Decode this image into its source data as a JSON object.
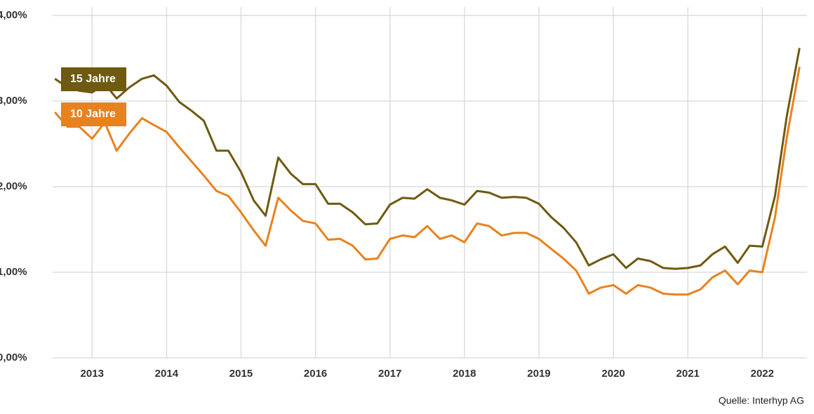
{
  "chart_data": {
    "type": "line",
    "x": [
      2012.5,
      2012.67,
      2012.83,
      2013,
      2013.17,
      2013.33,
      2013.5,
      2013.67,
      2013.83,
      2014,
      2014.17,
      2014.33,
      2014.5,
      2014.67,
      2014.83,
      2015,
      2015.17,
      2015.33,
      2015.5,
      2015.67,
      2015.83,
      2016,
      2016.17,
      2016.33,
      2016.5,
      2016.67,
      2016.83,
      2017,
      2017.17,
      2017.33,
      2017.5,
      2017.67,
      2017.83,
      2018,
      2018.17,
      2018.33,
      2018.5,
      2018.67,
      2018.83,
      2019,
      2019.17,
      2019.33,
      2019.5,
      2019.67,
      2019.83,
      2020,
      2020.17,
      2020.33,
      2020.5,
      2020.67,
      2020.83,
      2021,
      2021.17,
      2021.33,
      2021.5,
      2021.67,
      2021.83,
      2022,
      2022.17,
      2022.33,
      2022.5
    ],
    "series": [
      {
        "name": "15 Jahre",
        "color": "#6e5a10",
        "values": [
          3.26,
          3.16,
          3.12,
          3.1,
          3.2,
          3.03,
          3.16,
          3.26,
          3.3,
          3.18,
          2.99,
          2.89,
          2.77,
          2.42,
          2.42,
          2.17,
          1.84,
          1.66,
          2.34,
          2.15,
          2.03,
          2.03,
          1.8,
          1.8,
          1.7,
          1.56,
          1.57,
          1.79,
          1.87,
          1.86,
          1.97,
          1.87,
          1.84,
          1.79,
          1.95,
          1.93,
          1.87,
          1.88,
          1.87,
          1.8,
          1.64,
          1.52,
          1.35,
          1.08,
          1.15,
          1.21,
          1.05,
          1.16,
          1.13,
          1.05,
          1.04,
          1.05,
          1.08,
          1.21,
          1.3,
          1.11,
          1.31,
          1.3,
          1.89,
          2.83,
          3.62
        ]
      },
      {
        "name": "10 Jahre",
        "color": "#e8821e",
        "values": [
          2.87,
          2.7,
          2.7,
          2.56,
          2.75,
          2.42,
          2.62,
          2.8,
          2.72,
          2.64,
          2.46,
          2.3,
          2.13,
          1.95,
          1.89,
          1.7,
          1.49,
          1.31,
          1.87,
          1.72,
          1.6,
          1.57,
          1.38,
          1.39,
          1.31,
          1.15,
          1.16,
          1.39,
          1.43,
          1.41,
          1.54,
          1.39,
          1.43,
          1.35,
          1.57,
          1.54,
          1.43,
          1.46,
          1.46,
          1.39,
          1.27,
          1.16,
          1.02,
          0.75,
          0.82,
          0.85,
          0.75,
          0.85,
          0.82,
          0.75,
          0.74,
          0.74,
          0.8,
          0.94,
          1.02,
          0.86,
          1.02,
          1.0,
          1.64,
          2.58,
          3.4
        ]
      }
    ],
    "xlim": [
      2012.47,
      2022.6
    ],
    "xticks": [
      2013,
      2014,
      2015,
      2016,
      2017,
      2018,
      2019,
      2020,
      2021,
      2022
    ],
    "ylim": [
      0,
      4
    ],
    "yticks": [
      {
        "value": 0,
        "label": "0,00%"
      },
      {
        "value": 1,
        "label": "1,00%"
      },
      {
        "value": 2,
        "label": "2,00%"
      },
      {
        "value": 3,
        "label": "3,00%"
      },
      {
        "value": 4,
        "label": "4,00%"
      }
    ],
    "grid": true,
    "source": "Quelle: Interhyp AG"
  }
}
